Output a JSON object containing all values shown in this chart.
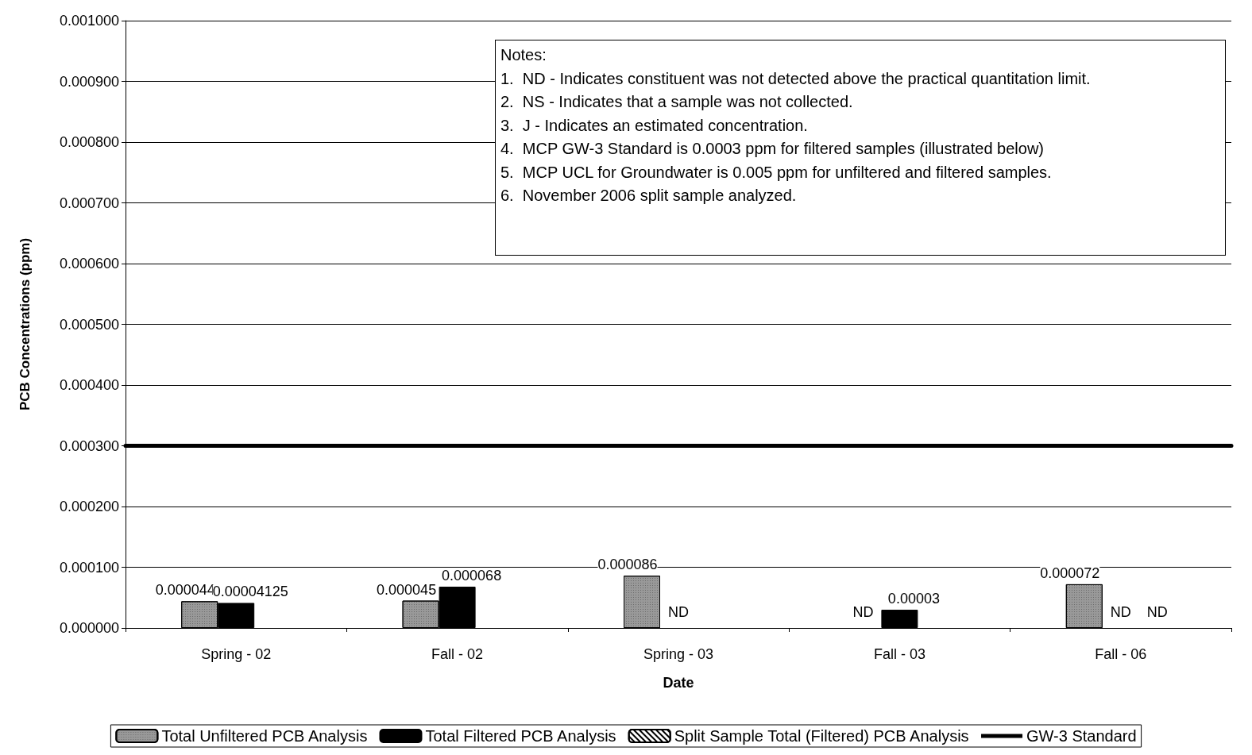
{
  "chart_data": {
    "type": "bar",
    "xlabel": "Date",
    "ylabel": "PCB Concentrations (ppm)",
    "categories": [
      "Spring - 02",
      "Fall - 02",
      "Spring - 03",
      "Fall - 03",
      "Fall - 06"
    ],
    "series": [
      {
        "name": "Total Unfiltered PCB Analysis",
        "color": "#999999",
        "values": [
          4.4e-05,
          4.5e-05,
          8.6e-05,
          null,
          7.2e-05
        ],
        "value_labels": [
          "0.000044",
          "0.000045",
          "0.000086",
          "ND",
          "0.000072"
        ]
      },
      {
        "name": "Total Filtered PCB Analysis",
        "color": "#000000",
        "values": [
          4.125e-05,
          6.8e-05,
          null,
          3e-05,
          null
        ],
        "value_labels": [
          "0.00004125",
          "0.000068",
          "ND",
          "0.00003",
          "ND"
        ]
      },
      {
        "name": "Split Sample Total (Filtered) PCB Analysis",
        "color": "#ffffff",
        "values": [
          null,
          null,
          null,
          null,
          null
        ],
        "value_labels": [
          null,
          null,
          null,
          null,
          "ND"
        ]
      }
    ],
    "ylim": [
      0,
      0.001
    ],
    "yticks": [
      {
        "value": 0,
        "label": "0.000000"
      },
      {
        "value": 0.0001,
        "label": "0.000100"
      },
      {
        "value": 0.0002,
        "label": "0.000200"
      },
      {
        "value": 0.0003,
        "label": "0.000300"
      },
      {
        "value": 0.0004,
        "label": "0.000400"
      },
      {
        "value": 0.0005,
        "label": "0.000500"
      },
      {
        "value": 0.0006,
        "label": "0.000600"
      },
      {
        "value": 0.0007,
        "label": "0.000700"
      },
      {
        "value": 0.0008,
        "label": "0.000800"
      },
      {
        "value": 0.0009,
        "label": "0.000900"
      },
      {
        "value": 0.001,
        "label": "0.001000"
      }
    ],
    "ref_lines": [
      {
        "axis": "y",
        "value": 0.0003,
        "label": "GW-3 Standard",
        "color": "#000000"
      }
    ],
    "grid": "y",
    "legend": "bottom",
    "annotations": [
      "Notes:",
      "1.  ND - Indicates constituent was not detected above the practical quantitation limit.",
      "2.  NS - Indicates that a sample was not collected.",
      "3.  J - Indicates an estimated concentration.",
      "4.  MCP GW-3 Standard is 0.0003 ppm for filtered samples (illustrated below)",
      "5.  MCP UCL for Groundwater is 0.005 ppm for unfiltered and filtered samples.",
      "6.  November 2006 split sample analyzed."
    ]
  }
}
